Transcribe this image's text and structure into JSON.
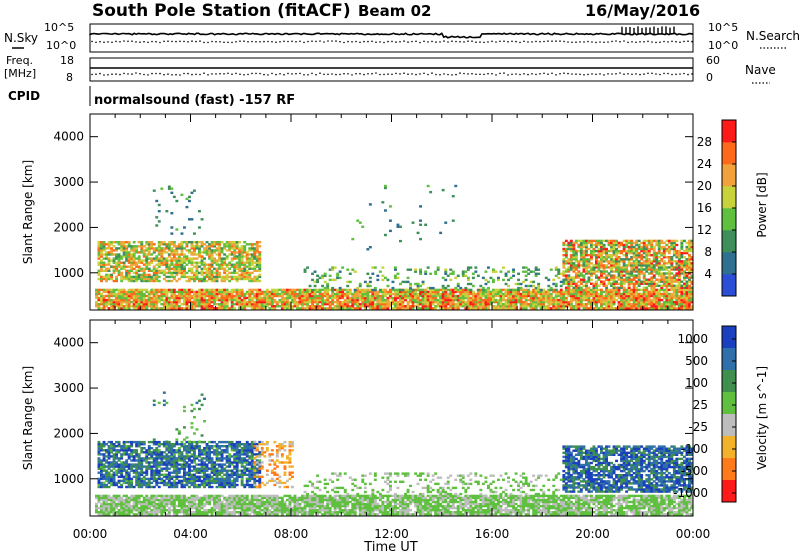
{
  "header": {
    "station": "South Pole Station (fitACF)",
    "beam": "Beam 02",
    "date": "16/May/2016"
  },
  "top_panels": {
    "nsky_label": "N.Sky",
    "nsearch_label": "N.Search",
    "freq_label_1": "Freq.",
    "freq_label_2": "[MHz]",
    "nave_label": "Nave",
    "cpid_label": "CPID",
    "cpid_text": "normalsound (fast) -157 RF",
    "noise_ticks": [
      "10^5",
      "10^0"
    ],
    "freq_ticks": [
      "18",
      "8"
    ],
    "nave_ticks": [
      "60",
      "0"
    ]
  },
  "colors": {
    "power_scale": [
      "#2a4fd6",
      "#2f6f8f",
      "#3f8f5a",
      "#5fbf3f",
      "#c8d23a",
      "#f2a23a",
      "#ff6a1a",
      "#ff1a1a"
    ],
    "velocity_scale": [
      "#1a3fbf",
      "#2f6faa",
      "#3f8f4f",
      "#5fc03f",
      "#bdbdbd",
      "#f2b22a",
      "#ff7a1a",
      "#ff1a1a"
    ]
  },
  "chart_data": [
    {
      "type": "heatmap",
      "name": "power",
      "ylabel": "Slant Range [km]",
      "xlabel": "",
      "ylim": [
        180,
        4500
      ],
      "x_ticks": [
        "00:00",
        "04:00",
        "08:00",
        "12:00",
        "16:00",
        "20:00",
        "00:00"
      ],
      "y_ticks": [
        1000,
        2000,
        3000,
        4000
      ],
      "colorbar": {
        "label": "Power [dB]",
        "ticks": [
          "4",
          "8",
          "12",
          "16",
          "20",
          "24",
          "28"
        ],
        "range": [
          0,
          32
        ]
      },
      "regions": [
        {
          "t0": 0.2,
          "t1": 24.0,
          "r0": 200,
          "r1": 650,
          "density": 0.9,
          "v0": 12,
          "v1": 30
        },
        {
          "t0": 0.3,
          "t1": 6.7,
          "r0": 800,
          "r1": 1700,
          "density": 0.7,
          "v0": 10,
          "v1": 26
        },
        {
          "t0": 18.8,
          "t1": 24.0,
          "r0": 650,
          "r1": 1700,
          "density": 0.75,
          "v0": 8,
          "v1": 30
        },
        {
          "t0": 8.5,
          "t1": 18.8,
          "r0": 600,
          "r1": 1100,
          "density": 0.2,
          "v0": 6,
          "v1": 18
        },
        {
          "t0": 2.5,
          "t1": 4.5,
          "r0": 1800,
          "r1": 2900,
          "density": 0.06,
          "v0": 4,
          "v1": 14
        },
        {
          "t0": 10.0,
          "t1": 14.5,
          "r0": 1500,
          "r1": 2900,
          "density": 0.03,
          "v0": 4,
          "v1": 14
        }
      ]
    },
    {
      "type": "heatmap",
      "name": "velocity",
      "ylabel": "Slant Range [km]",
      "xlabel": "Time UT",
      "ylim": [
        180,
        4500
      ],
      "x_ticks": [
        "00:00",
        "04:00",
        "08:00",
        "12:00",
        "16:00",
        "20:00",
        "00:00"
      ],
      "y_ticks": [
        1000,
        2000,
        3000,
        4000
      ],
      "colorbar": {
        "label": "Velocity [m s^-1]",
        "ticks": [
          "1000",
          "500",
          "100",
          "25",
          "-25",
          "-100",
          "-500",
          "-1000"
        ],
        "range": [
          -1000,
          1000
        ]
      },
      "regions": [
        {
          "t0": 0.2,
          "t1": 24.0,
          "r0": 200,
          "r1": 650,
          "density": 0.85,
          "v0": -150,
          "v1": 250
        },
        {
          "t0": 0.3,
          "t1": 6.7,
          "r0": 800,
          "r1": 1800,
          "density": 0.75,
          "v0": 200,
          "v1": 1000
        },
        {
          "t0": 6.5,
          "t1": 8.0,
          "r0": 800,
          "r1": 1800,
          "density": 0.35,
          "v0": -700,
          "v1": -150
        },
        {
          "t0": 18.8,
          "t1": 24.0,
          "r0": 700,
          "r1": 1700,
          "density": 0.75,
          "v0": 300,
          "v1": 1000
        },
        {
          "t0": 8.5,
          "t1": 18.8,
          "r0": 600,
          "r1": 1100,
          "density": 0.2,
          "v0": -100,
          "v1": 200
        },
        {
          "t0": 2.5,
          "t1": 4.5,
          "r0": 1800,
          "r1": 2900,
          "density": 0.06,
          "v0": 0,
          "v1": 600
        }
      ]
    }
  ]
}
